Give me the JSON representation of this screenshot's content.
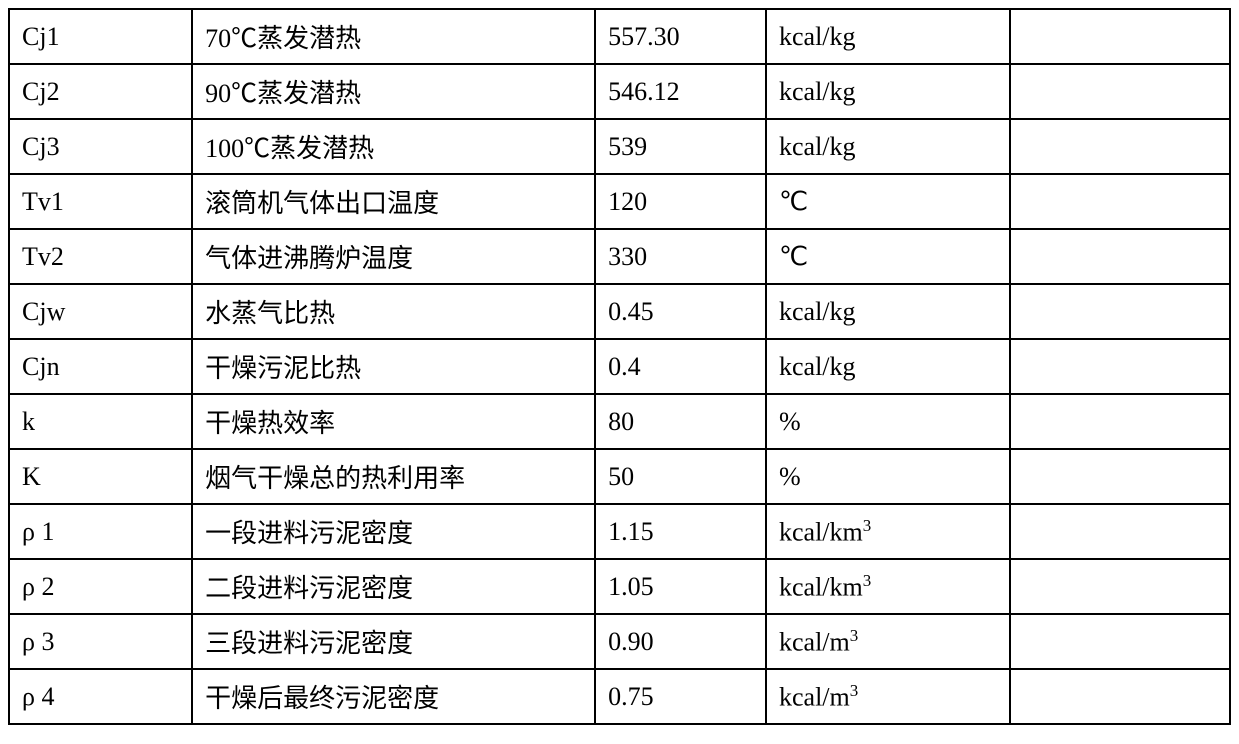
{
  "table": {
    "columns": {
      "widths": [
        "15%",
        "33%",
        "14%",
        "20%",
        "18%"
      ],
      "alignment": [
        "left",
        "left",
        "left",
        "left",
        "left"
      ]
    },
    "border_color": "#000000",
    "border_width": 2,
    "background_color": "#ffffff",
    "font_size": 26,
    "sup_font_size": 17,
    "text_color": "#000000",
    "rows": [
      {
        "symbol": "Cj1",
        "description": "70℃蒸发潜热",
        "value": "557.30",
        "unit": "kcal/kg",
        "unit_sup": "",
        "note": ""
      },
      {
        "symbol": "Cj2",
        "description": "90℃蒸发潜热",
        "value": "546.12",
        "unit": "kcal/kg",
        "unit_sup": "",
        "note": ""
      },
      {
        "symbol": "Cj3",
        "description": "100℃蒸发潜热",
        "value": "539",
        "unit": "kcal/kg",
        "unit_sup": "",
        "note": ""
      },
      {
        "symbol": "Tv1",
        "description": "滚筒机气体出口温度",
        "value": "120",
        "unit": "℃",
        "unit_sup": "",
        "note": ""
      },
      {
        "symbol": "Tv2",
        "description": "气体进沸腾炉温度",
        "value": "330",
        "unit": "℃",
        "unit_sup": "",
        "note": ""
      },
      {
        "symbol": "Cjw",
        "description": "水蒸气比热",
        "value": "0.45",
        "unit": " kcal/kg",
        "unit_sup": "",
        "note": ""
      },
      {
        "symbol": "Cjn",
        "description": "干燥污泥比热",
        "value": "0.4",
        "unit": " kcal/kg",
        "unit_sup": "",
        "note": ""
      },
      {
        "symbol": "k",
        "description": "干燥热效率",
        "value": "80",
        "unit": "%",
        "unit_sup": "",
        "note": ""
      },
      {
        "symbol": "K",
        "description": "烟气干燥总的热利用率",
        "value": "50",
        "unit": "%",
        "unit_sup": "",
        "note": ""
      },
      {
        "symbol": "ρ 1",
        "description": "一段进料污泥密度",
        "value": "1.15",
        "unit": " kcal/km",
        "unit_sup": "3",
        "note": ""
      },
      {
        "symbol": "ρ 2",
        "description": "二段进料污泥密度",
        "value": "1.05",
        "unit": " kcal/km",
        "unit_sup": "3",
        "note": ""
      },
      {
        "symbol": "ρ 3",
        "description": "三段进料污泥密度",
        "value": "0.90",
        "unit": " kcal/m",
        "unit_sup": "3",
        "note": ""
      },
      {
        "symbol": "ρ 4",
        "description": "干燥后最终污泥密度",
        "value": "0.75",
        "unit": " kcal/m",
        "unit_sup": "3",
        "note": ""
      }
    ]
  }
}
